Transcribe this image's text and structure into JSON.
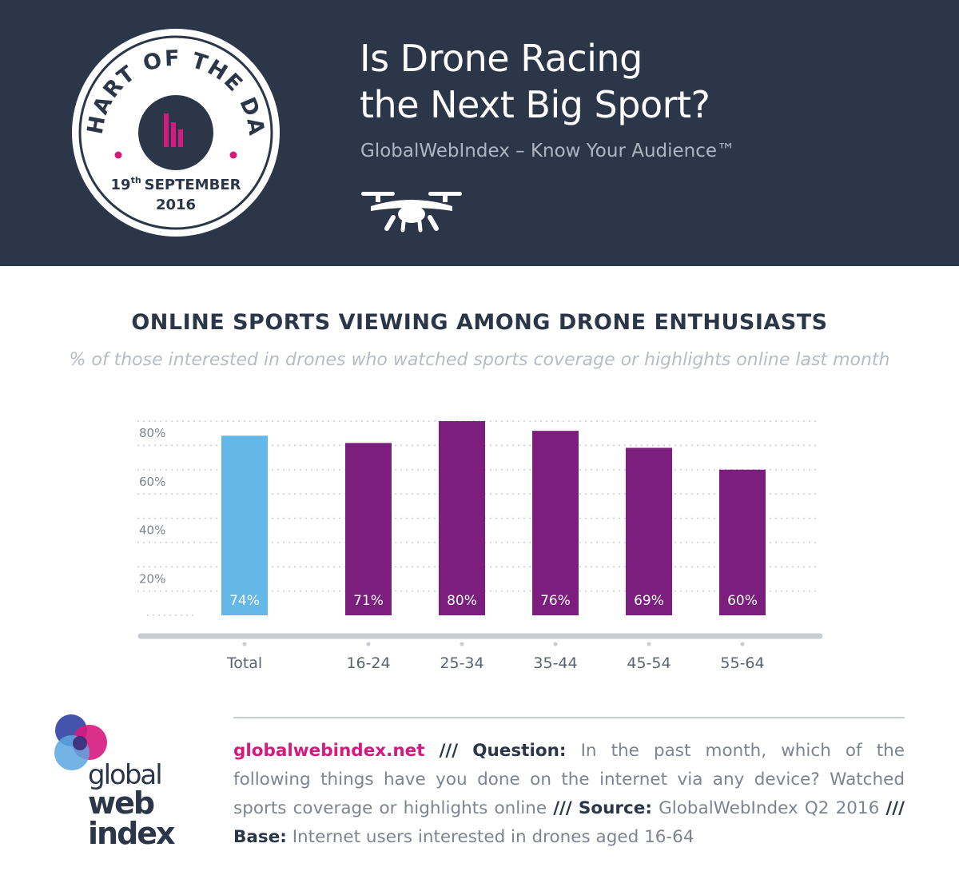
{
  "header": {
    "badge": {
      "arc_text": "CHART OF THE DAY",
      "day": "19",
      "day_suffix": "th",
      "month": "SEPTEMBER",
      "year": "2016"
    },
    "title_line1": "Is Drone Racing",
    "title_line2": "the Next Big Sport?",
    "tagline": "GlobalWebIndex – Know Your Audience™",
    "icon": "drone-icon"
  },
  "colors": {
    "header_bg": "#2b3648",
    "total_bar": "#63b8e8",
    "age_bar": "#7b1e7e",
    "accent_pink": "#d6197e",
    "grid": "#c8ccd3"
  },
  "chart_data": {
    "type": "bar",
    "title": "ONLINE SPORTS VIEWING AMONG DRONE ENTHUSIASTS",
    "subtitle": "% of those interested in drones who watched sports coverage or highlights online last month",
    "categories": [
      "Total",
      "16-24",
      "25-34",
      "35-44",
      "45-54",
      "55-64"
    ],
    "values": [
      74,
      71,
      80,
      76,
      69,
      60
    ],
    "value_labels": [
      "74%",
      "71%",
      "80%",
      "76%",
      "69%",
      "60%"
    ],
    "yticks": [
      "20%",
      "40%",
      "60%",
      "80%"
    ],
    "ytick_values": [
      20,
      40,
      60,
      80
    ],
    "ylim": [
      0,
      80
    ],
    "xlabel": "",
    "ylabel": "",
    "grid": true
  },
  "footer": {
    "logo_text": [
      "global",
      "web",
      "index"
    ],
    "site": "globalwebindex.net",
    "sep": "///",
    "question_label": "Question:",
    "question": "In the past month, which of the following things have you done on the internet via any device? Watched sports coverage or highlights online",
    "source_label": "Source:",
    "source": "GlobalWebIndex Q2 2016",
    "base_label": "Base:",
    "base": "Internet users interested in drones aged 16-64"
  }
}
